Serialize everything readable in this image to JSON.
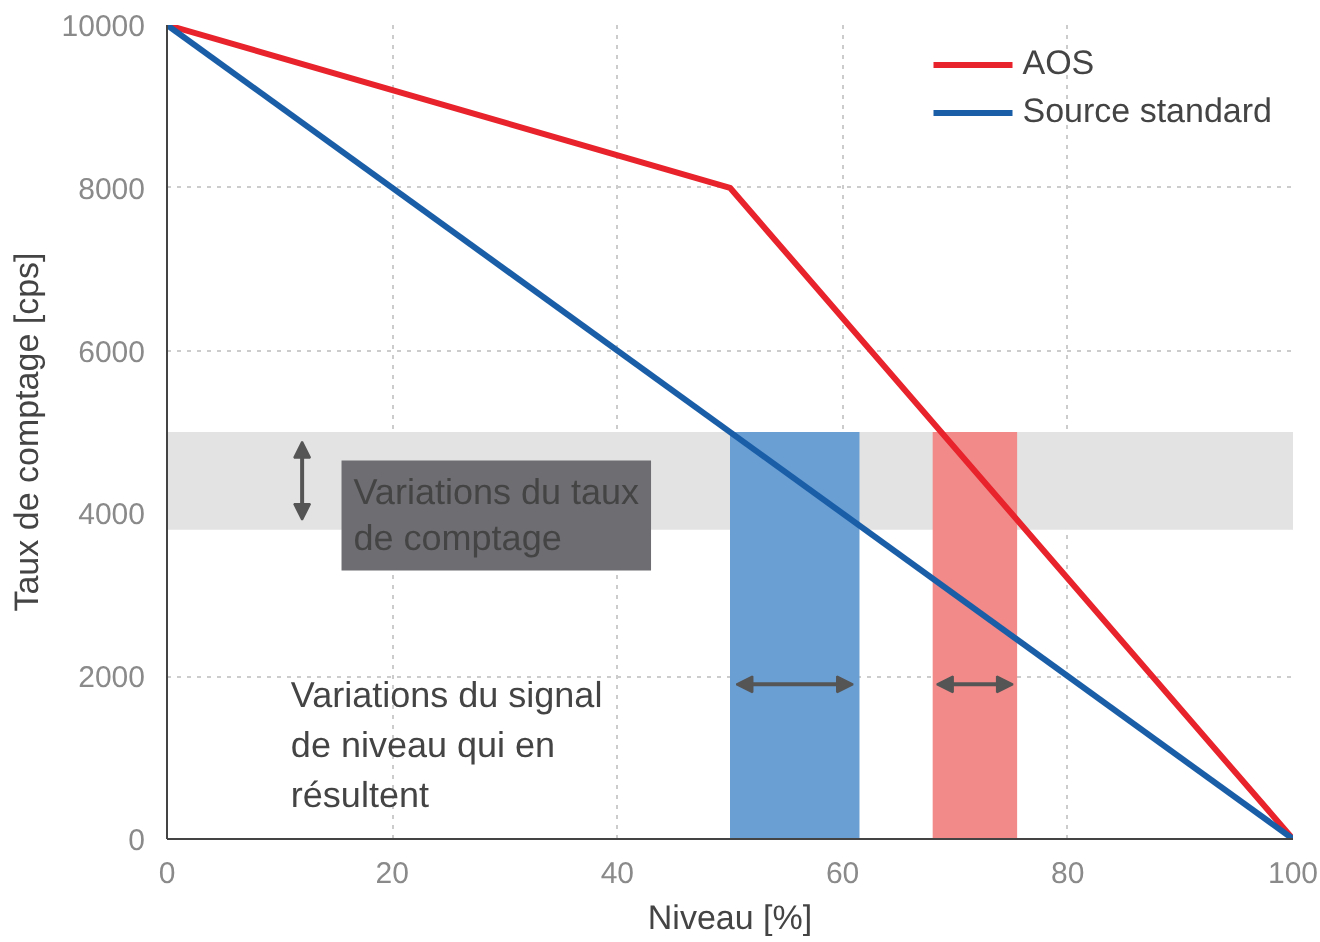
{
  "chart_data": {
    "type": "line",
    "xlabel": "Niveau [%]",
    "ylabel": "Taux de comptage [cps]",
    "series": [
      {
        "name": "AOS",
        "color": "#e8232b",
        "x": [
          0,
          50,
          100
        ],
        "values": [
          10000,
          8000,
          0
        ]
      },
      {
        "name": "Source standard",
        "color": "#1a5ea8",
        "x": [
          0,
          100
        ],
        "values": [
          10000,
          0
        ]
      }
    ],
    "xlim": [
      0,
      100
    ],
    "ylim": [
      0,
      10000
    ],
    "xticks": [
      0,
      20,
      40,
      60,
      80,
      100
    ],
    "yticks": [
      0,
      2000,
      4000,
      6000,
      8000,
      10000
    ],
    "bands": [
      {
        "axis": "y",
        "from": 3800,
        "to": 5000,
        "color": "#e3e3e3"
      },
      {
        "axis": "x",
        "from": 50,
        "to": 61.5,
        "color": "#6a9fd4"
      },
      {
        "axis": "x",
        "from": 68,
        "to": 75.5,
        "color": "#f28a8a"
      }
    ],
    "annotations": [
      "Variations du taux de comptage",
      "Variations du signal de niveau qui en résultent"
    ],
    "grid": true,
    "legend": "top right",
    "marker": "none",
    "line_style": "solid"
  }
}
